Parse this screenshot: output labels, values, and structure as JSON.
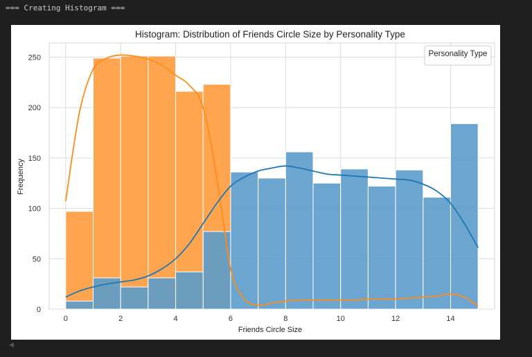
{
  "output": {
    "stdout": "=== Creating Histogram ===",
    "collapse_glyph": "◀"
  },
  "chart_data": {
    "type": "bar",
    "subtype": "overlapping histogram with kde curves",
    "title": "Histogram: Distribution of Friends Circle Size by Personality Type",
    "xlabel": "Friends Circle Size",
    "ylabel": "Frequency",
    "legend_title": "Personality Type",
    "legend_position": "top-right",
    "grid": true,
    "xlim": [
      -0.6,
      15.6
    ],
    "ylim": [
      0,
      264
    ],
    "xticks": [
      0,
      2,
      4,
      6,
      8,
      10,
      12,
      14
    ],
    "yticks": [
      0,
      50,
      100,
      150,
      200,
      250
    ],
    "bin_edges": [
      0,
      1,
      2,
      3,
      4,
      5,
      6,
      7,
      8,
      9,
      10,
      11,
      12,
      13,
      14,
      15
    ],
    "series": [
      {
        "color": "#ff8c1a",
        "bar_color": "#ffa44f",
        "values": [
          97,
          249,
          251,
          251,
          216,
          223,
          0,
          0,
          0,
          0,
          0,
          0,
          0,
          0,
          0
        ],
        "kde": {
          "x": [
            0,
            0.5,
            1,
            1.5,
            2,
            2.5,
            3,
            3.5,
            4,
            4.5,
            5,
            5.5,
            6,
            6.5,
            7,
            7.5,
            8,
            8.5,
            9,
            9.5,
            10,
            10.5,
            11,
            11.5,
            12,
            12.5,
            13,
            13.5,
            14,
            14.5,
            15
          ],
          "y": [
            107,
            195,
            238,
            249,
            252,
            251,
            248,
            242,
            232,
            222,
            200,
            130,
            40,
            10,
            4,
            6,
            8,
            9,
            9,
            9,
            9,
            9,
            10,
            10,
            10,
            11,
            12,
            13,
            15,
            12,
            3
          ]
        }
      },
      {
        "color": "#1f77b4",
        "bar_color": "#5c9ccb",
        "values": [
          8,
          31,
          22,
          31,
          37,
          77,
          136,
          130,
          156,
          125,
          139,
          122,
          138,
          111,
          184
        ],
        "kde": {
          "x": [
            0,
            0.5,
            1,
            1.5,
            2,
            2.5,
            3,
            3.5,
            4,
            4.5,
            5,
            5.5,
            6,
            6.5,
            7,
            7.5,
            8,
            8.5,
            9,
            9.5,
            10,
            10.5,
            11,
            11.5,
            12,
            12.5,
            13,
            13.5,
            14,
            14.5,
            15
          ],
          "y": [
            12,
            18,
            22,
            25,
            27,
            29,
            33,
            40,
            50,
            65,
            85,
            105,
            122,
            131,
            137,
            140,
            142,
            140,
            137,
            134,
            133,
            132,
            131,
            130,
            129,
            128,
            124,
            117,
            105,
            85,
            61
          ]
        }
      }
    ]
  }
}
